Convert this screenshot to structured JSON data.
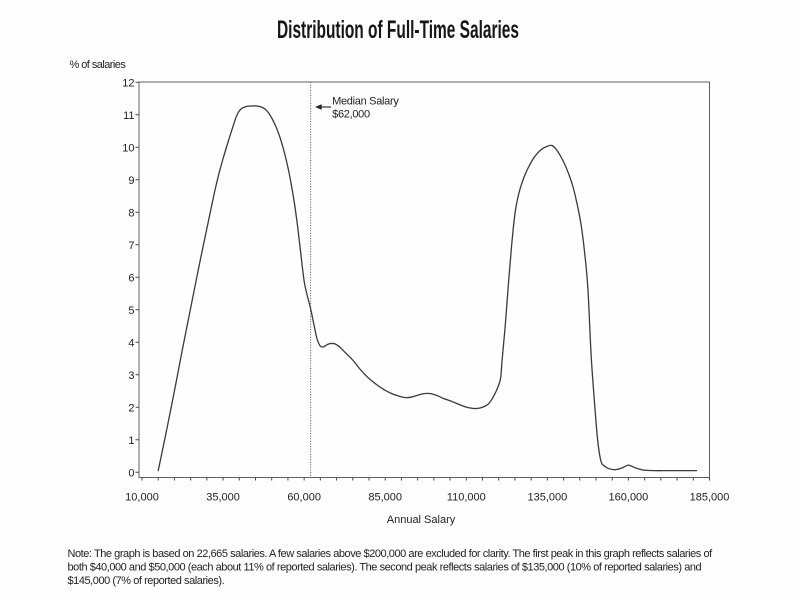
{
  "title": "Distribution of Full-Time Salaries",
  "chart_data": {
    "type": "line",
    "title": "Distribution of Full-Time Salaries",
    "xlabel": "Annual Salary",
    "ylabel": "% of salaries",
    "xlim": [
      10000,
      185000
    ],
    "ylim": [
      0,
      12
    ],
    "grid": false,
    "legend": "none",
    "x_major_ticks": [
      10000,
      35000,
      60000,
      85000,
      110000,
      135000,
      160000,
      185000
    ],
    "x_tick_labels": [
      "10,000",
      "35,000",
      "60,000",
      "85,000",
      "110,000",
      "135,000",
      "160,000",
      "185,000"
    ],
    "x_minor_tick_step": 5000,
    "y_ticks": [
      0,
      1,
      2,
      3,
      4,
      5,
      6,
      7,
      8,
      9,
      10,
      11,
      12
    ],
    "y_tick_labels": [
      "0",
      "1",
      "2",
      "3",
      "4",
      "5",
      "6",
      "7",
      "8",
      "9",
      "10",
      "11",
      "12"
    ],
    "median_annotation": {
      "value": 62000,
      "line1": "Median Salary",
      "line2": "$62,000"
    },
    "series": [
      {
        "name": "percent-of-salaries",
        "points": [
          [
            15000,
            0.05
          ],
          [
            17500,
            1.25
          ],
          [
            20000,
            2.5
          ],
          [
            22500,
            3.8
          ],
          [
            25000,
            5.05
          ],
          [
            27500,
            6.3
          ],
          [
            30000,
            7.5
          ],
          [
            32000,
            8.45
          ],
          [
            33500,
            9.1
          ],
          [
            35000,
            9.65
          ],
          [
            36500,
            10.15
          ],
          [
            38000,
            10.62
          ],
          [
            39000,
            10.92
          ],
          [
            40000,
            11.12
          ],
          [
            41000,
            11.21
          ],
          [
            42500,
            11.26
          ],
          [
            44000,
            11.27
          ],
          [
            45500,
            11.27
          ],
          [
            47000,
            11.23
          ],
          [
            48000,
            11.17
          ],
          [
            49000,
            11.06
          ],
          [
            50000,
            10.9
          ],
          [
            51000,
            10.7
          ],
          [
            52000,
            10.46
          ],
          [
            53000,
            10.16
          ],
          [
            54000,
            9.8
          ],
          [
            55000,
            9.38
          ],
          [
            56000,
            8.87
          ],
          [
            57000,
            8.28
          ],
          [
            58000,
            7.55
          ],
          [
            59000,
            6.7
          ],
          [
            60000,
            5.88
          ],
          [
            61000,
            5.42
          ],
          [
            62000,
            5.03
          ],
          [
            63000,
            4.55
          ],
          [
            64000,
            4.1
          ],
          [
            65000,
            3.88
          ],
          [
            66000,
            3.86
          ],
          [
            67000,
            3.92
          ],
          [
            68000,
            3.96
          ],
          [
            69500,
            3.95
          ],
          [
            71000,
            3.85
          ],
          [
            73000,
            3.65
          ],
          [
            75000,
            3.45
          ],
          [
            77000,
            3.2
          ],
          [
            79000,
            2.98
          ],
          [
            81000,
            2.8
          ],
          [
            83000,
            2.65
          ],
          [
            85000,
            2.52
          ],
          [
            87000,
            2.42
          ],
          [
            89000,
            2.35
          ],
          [
            91000,
            2.3
          ],
          [
            93000,
            2.31
          ],
          [
            95000,
            2.37
          ],
          [
            97000,
            2.42
          ],
          [
            99000,
            2.42
          ],
          [
            101000,
            2.36
          ],
          [
            103000,
            2.27
          ],
          [
            105000,
            2.2
          ],
          [
            107000,
            2.12
          ],
          [
            109000,
            2.04
          ],
          [
            111000,
            1.98
          ],
          [
            113000,
            1.96
          ],
          [
            115000,
            2.0
          ],
          [
            117000,
            2.12
          ],
          [
            119000,
            2.45
          ],
          [
            120500,
            2.85
          ],
          [
            121000,
            3.4
          ],
          [
            122000,
            4.5
          ],
          [
            123000,
            5.8
          ],
          [
            124000,
            7.0
          ],
          [
            125000,
            7.95
          ],
          [
            126000,
            8.5
          ],
          [
            127500,
            9.0
          ],
          [
            129000,
            9.35
          ],
          [
            131000,
            9.7
          ],
          [
            133000,
            9.92
          ],
          [
            135000,
            10.03
          ],
          [
            136500,
            10.05
          ],
          [
            138000,
            9.9
          ],
          [
            140000,
            9.55
          ],
          [
            141500,
            9.2
          ],
          [
            143000,
            8.75
          ],
          [
            144500,
            8.1
          ],
          [
            145500,
            7.55
          ],
          [
            146500,
            6.75
          ],
          [
            147500,
            5.65
          ],
          [
            148500,
            3.6
          ],
          [
            149500,
            2.2
          ],
          [
            150500,
            1.0
          ],
          [
            151500,
            0.35
          ],
          [
            152500,
            0.2
          ],
          [
            154000,
            0.11
          ],
          [
            156000,
            0.08
          ],
          [
            158000,
            0.13
          ],
          [
            160000,
            0.22
          ],
          [
            162000,
            0.14
          ],
          [
            164500,
            0.07
          ],
          [
            168000,
            0.05
          ],
          [
            172000,
            0.05
          ],
          [
            176000,
            0.05
          ],
          [
            181000,
            0.05
          ]
        ]
      }
    ]
  },
  "note": {
    "lines": [
      "Note: The graph is based on 22,665 salaries. A few salaries above $200,000 are excluded for clarity. The first peak in this graph reflects salaries of",
      "both $40,000 and $50,000 (each about 11% of reported salaries). The second peak reflects salaries of $135,000 (10% of reported salaries) and",
      "$145,000 (7% of reported salaries)."
    ]
  },
  "colors": {
    "paper": "#fefefe",
    "ink": "#222222",
    "title_ink": "#161616",
    "curve": "#3a3a3a",
    "frame": "#606060",
    "tick": "#4a4a4a",
    "median_line": "#5a5a5a"
  }
}
